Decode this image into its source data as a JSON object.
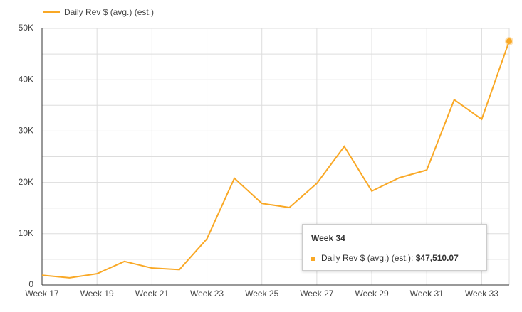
{
  "chart_data": {
    "type": "line",
    "categories": [
      "Week 17",
      null,
      "Week 19",
      null,
      "Week 21",
      null,
      "Week 23",
      null,
      "Week 25",
      null,
      "Week 27",
      null,
      "Week 29",
      null,
      "Week 31",
      null,
      "Week 33",
      null
    ],
    "series": [
      {
        "name": "Daily Rev $ (avg.) (est.)",
        "color": "#f9a825",
        "values": [
          1900,
          1400,
          2200,
          4600,
          3300,
          3000,
          9000,
          20800,
          15900,
          15100,
          19800,
          27000,
          18300,
          20900,
          22400,
          36100,
          32300,
          47510.07
        ]
      }
    ],
    "ylim": [
      0,
      50000
    ],
    "yticks": [
      {
        "value": 0,
        "label": "0"
      },
      {
        "value": 10000,
        "label": "10K"
      },
      {
        "value": 20000,
        "label": "20K"
      },
      {
        "value": 30000,
        "label": "30K"
      },
      {
        "value": 40000,
        "label": "40K"
      },
      {
        "value": 50000,
        "label": "50K"
      }
    ],
    "minor_gridlines": [
      5000,
      15000,
      25000,
      35000,
      45000
    ],
    "grid": true,
    "legend": "top-left",
    "tooltip": {
      "title": "Week 34",
      "label": "Daily Rev $ (avg.) (est.):",
      "value_label": "$47,510.07"
    }
  }
}
